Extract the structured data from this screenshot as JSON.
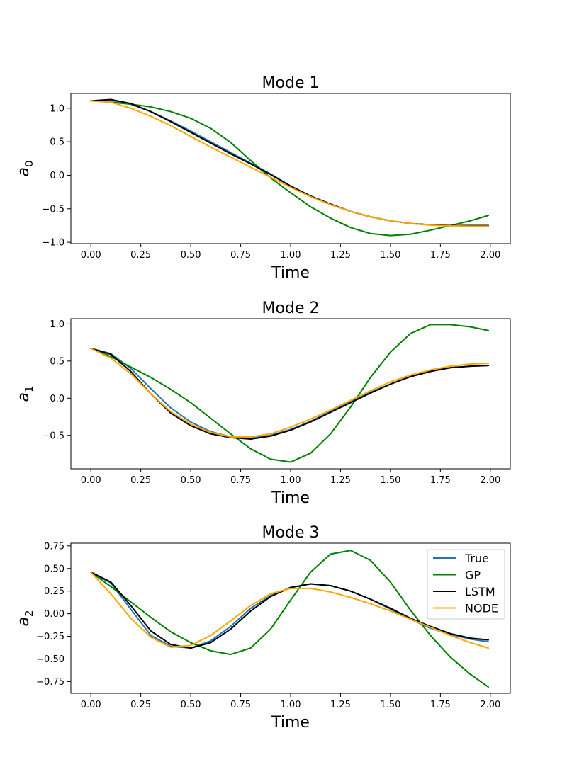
{
  "chart_data": [
    {
      "type": "line",
      "title": "Mode 1",
      "xlabel": "Time",
      "ylabel_base": "a",
      "ylabel_sub": "0",
      "xlim": [
        -0.1,
        2.1
      ],
      "ylim": [
        -1.02,
        1.22
      ],
      "xticks": [
        0.0,
        0.25,
        0.5,
        0.75,
        1.0,
        1.25,
        1.5,
        1.75,
        2.0
      ],
      "xtick_labels": [
        "0.00",
        "0.25",
        "0.50",
        "0.75",
        "1.00",
        "1.25",
        "1.50",
        "1.75",
        "2.00"
      ],
      "yticks": [
        1.0,
        0.5,
        0.0,
        -0.5,
        -1.0
      ],
      "ytick_labels": [
        "1.0",
        "0.5",
        "0.0",
        "−0.5",
        "−1.0"
      ],
      "legend": false,
      "x": [
        0.0,
        0.1,
        0.2,
        0.3,
        0.4,
        0.5,
        0.6,
        0.7,
        0.8,
        0.9,
        1.0,
        1.1,
        1.2,
        1.3,
        1.4,
        1.5,
        1.6,
        1.7,
        1.8,
        1.9,
        1.99
      ],
      "series": [
        {
          "name": "True",
          "color": "#1f77b4",
          "values": [
            1.11,
            1.12,
            1.06,
            0.95,
            0.81,
            0.66,
            0.5,
            0.34,
            0.18,
            0.02,
            -0.16,
            -0.31,
            -0.43,
            -0.54,
            -0.62,
            -0.68,
            -0.72,
            -0.74,
            -0.75,
            -0.75,
            -0.75
          ]
        },
        {
          "name": "GP",
          "color": "#008000",
          "values": [
            1.11,
            1.09,
            1.06,
            1.02,
            0.95,
            0.85,
            0.7,
            0.49,
            0.22,
            -0.04,
            -0.26,
            -0.47,
            -0.64,
            -0.78,
            -0.87,
            -0.9,
            -0.88,
            -0.82,
            -0.75,
            -0.68,
            -0.6
          ]
        },
        {
          "name": "LSTM",
          "color": "#000000",
          "values": [
            1.11,
            1.13,
            1.07,
            0.95,
            0.8,
            0.64,
            0.48,
            0.32,
            0.17,
            0.01,
            -0.16,
            -0.31,
            -0.43,
            -0.54,
            -0.62,
            -0.68,
            -0.72,
            -0.74,
            -0.75,
            -0.75,
            -0.75
          ]
        },
        {
          "name": "NODE",
          "color": "#ffa500",
          "values": [
            1.11,
            1.09,
            1.0,
            0.88,
            0.74,
            0.58,
            0.42,
            0.27,
            0.12,
            -0.03,
            -0.18,
            -0.32,
            -0.44,
            -0.54,
            -0.62,
            -0.68,
            -0.72,
            -0.745,
            -0.755,
            -0.76,
            -0.76
          ]
        }
      ]
    },
    {
      "type": "line",
      "title": "Mode 2",
      "xlabel": "Time",
      "ylabel_base": "a",
      "ylabel_sub": "1",
      "xlim": [
        -0.1,
        2.1
      ],
      "ylim": [
        -0.95,
        1.07
      ],
      "xticks": [
        0.0,
        0.25,
        0.5,
        0.75,
        1.0,
        1.25,
        1.5,
        1.75,
        2.0
      ],
      "xtick_labels": [
        "0.00",
        "0.25",
        "0.50",
        "0.75",
        "1.00",
        "1.25",
        "1.50",
        "1.75",
        "2.00"
      ],
      "yticks": [
        1.0,
        0.5,
        0.0,
        -0.5
      ],
      "ytick_labels": [
        "1.0",
        "0.5",
        "0.0",
        "−0.5"
      ],
      "legend": false,
      "x": [
        0.0,
        0.1,
        0.2,
        0.3,
        0.4,
        0.5,
        0.6,
        0.7,
        0.8,
        0.9,
        1.0,
        1.1,
        1.2,
        1.3,
        1.4,
        1.5,
        1.6,
        1.7,
        1.8,
        1.9,
        1.99
      ],
      "series": [
        {
          "name": "True",
          "color": "#1f77b4",
          "values": [
            0.67,
            0.6,
            0.4,
            0.13,
            -0.13,
            -0.32,
            -0.45,
            -0.52,
            -0.54,
            -0.5,
            -0.42,
            -0.31,
            -0.18,
            -0.05,
            0.08,
            0.19,
            0.29,
            0.36,
            0.41,
            0.43,
            0.44
          ]
        },
        {
          "name": "GP",
          "color": "#008000",
          "values": [
            0.67,
            0.56,
            0.42,
            0.28,
            0.12,
            -0.06,
            -0.27,
            -0.48,
            -0.68,
            -0.82,
            -0.86,
            -0.74,
            -0.48,
            -0.12,
            0.28,
            0.62,
            0.87,
            0.99,
            0.99,
            0.96,
            0.91
          ]
        },
        {
          "name": "LSTM",
          "color": "#000000",
          "values": [
            0.67,
            0.59,
            0.36,
            0.06,
            -0.2,
            -0.37,
            -0.48,
            -0.53,
            -0.55,
            -0.51,
            -0.43,
            -0.32,
            -0.19,
            -0.06,
            0.07,
            0.19,
            0.29,
            0.36,
            0.41,
            0.43,
            0.44
          ]
        },
        {
          "name": "NODE",
          "color": "#ffa500",
          "values": [
            0.67,
            0.54,
            0.33,
            0.06,
            -0.18,
            -0.35,
            -0.46,
            -0.52,
            -0.52,
            -0.48,
            -0.39,
            -0.28,
            -0.16,
            -0.03,
            0.1,
            0.22,
            0.31,
            0.38,
            0.43,
            0.46,
            0.47
          ]
        }
      ]
    },
    {
      "type": "line",
      "title": "Mode 3",
      "xlabel": "Time",
      "ylabel_base": "a",
      "ylabel_sub": "2",
      "xlim": [
        -0.1,
        2.1
      ],
      "ylim": [
        -0.88,
        0.78
      ],
      "xticks": [
        0.0,
        0.25,
        0.5,
        0.75,
        1.0,
        1.25,
        1.5,
        1.75,
        2.0
      ],
      "xtick_labels": [
        "0.00",
        "0.25",
        "0.50",
        "0.75",
        "1.00",
        "1.25",
        "1.50",
        "1.75",
        "2.00"
      ],
      "yticks": [
        0.75,
        0.5,
        0.25,
        0.0,
        -0.25,
        -0.5,
        -0.75
      ],
      "ytick_labels": [
        "0.75",
        "0.50",
        "0.25",
        "0.00",
        "−0.25",
        "−0.50",
        "−0.75"
      ],
      "legend": true,
      "legend_loc": "upper right",
      "x": [
        0.0,
        0.1,
        0.2,
        0.3,
        0.4,
        0.5,
        0.6,
        0.7,
        0.8,
        0.9,
        1.0,
        1.1,
        1.2,
        1.3,
        1.4,
        1.5,
        1.6,
        1.7,
        1.8,
        1.9,
        1.99
      ],
      "series": [
        {
          "name": "True",
          "color": "#1f77b4",
          "values": [
            0.46,
            0.34,
            0.05,
            -0.24,
            -0.36,
            -0.38,
            -0.3,
            -0.14,
            0.06,
            0.2,
            0.29,
            0.33,
            0.31,
            0.25,
            0.16,
            0.05,
            -0.06,
            -0.16,
            -0.23,
            -0.28,
            -0.31
          ]
        },
        {
          "name": "GP",
          "color": "#008000",
          "values": [
            0.46,
            0.3,
            0.13,
            -0.04,
            -0.2,
            -0.32,
            -0.41,
            -0.45,
            -0.38,
            -0.17,
            0.15,
            0.46,
            0.66,
            0.7,
            0.59,
            0.35,
            0.04,
            -0.24,
            -0.48,
            -0.67,
            -0.81
          ]
        },
        {
          "name": "LSTM",
          "color": "#000000",
          "values": [
            0.46,
            0.35,
            0.09,
            -0.19,
            -0.34,
            -0.38,
            -0.32,
            -0.17,
            0.03,
            0.19,
            0.29,
            0.33,
            0.31,
            0.25,
            0.16,
            0.06,
            -0.05,
            -0.14,
            -0.22,
            -0.27,
            -0.29
          ]
        },
        {
          "name": "NODE",
          "color": "#ffa500",
          "values": [
            0.46,
            0.22,
            -0.05,
            -0.26,
            -0.37,
            -0.35,
            -0.24,
            -0.08,
            0.09,
            0.22,
            0.28,
            0.28,
            0.24,
            0.18,
            0.11,
            0.03,
            -0.06,
            -0.15,
            -0.24,
            -0.32,
            -0.38
          ]
        }
      ]
    }
  ]
}
